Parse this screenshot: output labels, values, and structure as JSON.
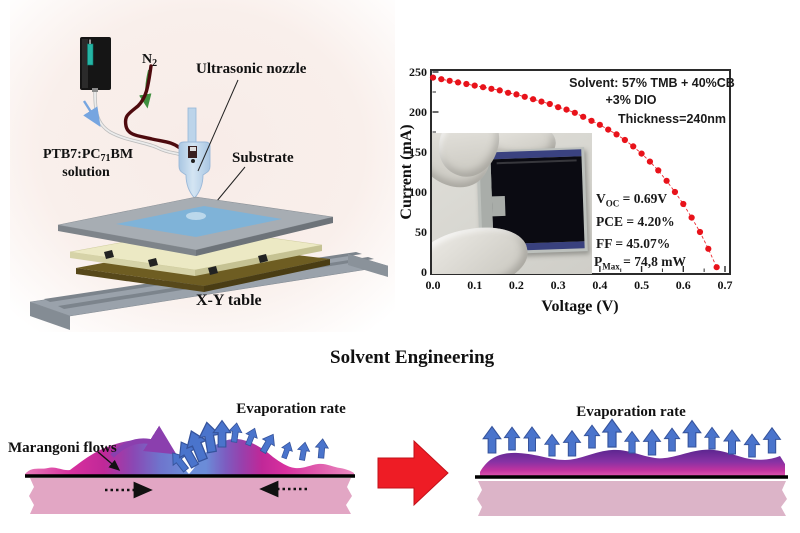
{
  "figure": {
    "apparatus": {
      "n2_main": "N",
      "n2_sub": "2",
      "nozzle_label": "Ultrasonic nozzle",
      "substrate_label": "Substrate",
      "solution_pre": "PTB7:PC",
      "solution_sub": "71",
      "solution_post": "BM",
      "solution_line2": "solution",
      "xy_table_label": "X-Y table"
    },
    "chart": {
      "annotations": {
        "solvent_line1": "Solvent: 57% TMB + 40%CB",
        "solvent_line2": "+3% DIO",
        "thickness": "Thickness=240nm",
        "voc_pre": "V",
        "voc_sub": "OC",
        "voc_val": "= 0.69V",
        "pce": "PCE = 4.20%",
        "ff": "FF = 45.07%",
        "pmax_pre": "P",
        "pmax_sub": "Max",
        "pmax_val": "=  74,8 mW"
      }
    },
    "section_title": "Solvent Engineering",
    "before_panel": {
      "marangoni_label": "Marangoni flows",
      "evaporation_label": "Evaporation rate"
    },
    "after_panel": {
      "evaporation_label": "Evaporation rate"
    }
  },
  "chart_data": {
    "type": "scatter",
    "title": "",
    "xlabel": "Voltage (V)",
    "ylabel": "Current (mA)",
    "xlim": [
      0,
      0.7
    ],
    "ylim": [
      0,
      250
    ],
    "grid": false,
    "legend": "none",
    "line_style": "dashed",
    "marker_color": "#e8121a",
    "x": [
      0.0,
      0.02,
      0.04,
      0.06,
      0.08,
      0.1,
      0.12,
      0.14,
      0.16,
      0.18,
      0.2,
      0.22,
      0.24,
      0.26,
      0.28,
      0.3,
      0.32,
      0.34,
      0.36,
      0.38,
      0.4,
      0.42,
      0.44,
      0.46,
      0.48,
      0.5,
      0.52,
      0.54,
      0.56,
      0.58,
      0.6,
      0.62,
      0.64,
      0.66,
      0.68
    ],
    "y": [
      243,
      241,
      239,
      237,
      235,
      233,
      231,
      229,
      227,
      224,
      222,
      219,
      216,
      213,
      210,
      206,
      203,
      199,
      194,
      189,
      184,
      178,
      172,
      165,
      157,
      148,
      138,
      127,
      114,
      100,
      85,
      68,
      50,
      29,
      6
    ],
    "x_tick_values": [
      0,
      0.1,
      0.2,
      0.3,
      0.4,
      0.5,
      0.6,
      0.7
    ],
    "x_tick_labels": [
      "0.0",
      "0.1",
      "0.2",
      "0.3",
      "0.4",
      "0.5",
      "0.6",
      "0.7"
    ],
    "x_minor_ticks": [
      0.05,
      0.15,
      0.25,
      0.35,
      0.45,
      0.55,
      0.65
    ],
    "y_tick_values": [
      0,
      50,
      100,
      150,
      200,
      250
    ],
    "y_tick_labels": [
      "0",
      "50",
      "100",
      "150",
      "200",
      "250"
    ],
    "y_minor_ticks": [
      25,
      75,
      125,
      175,
      225
    ]
  },
  "colors": {
    "accent_red": "#ee1c25",
    "curve_red": "#e8121a",
    "film_magenta": "#d8309e",
    "film_purple": "#5c2690",
    "flow_arrow_blue": "#4a74cc",
    "substrate_pink_left": "#e2a6c4",
    "substrate_pink_right": "#dcb4c8",
    "nozzle_blue": "#c2d9ee"
  }
}
